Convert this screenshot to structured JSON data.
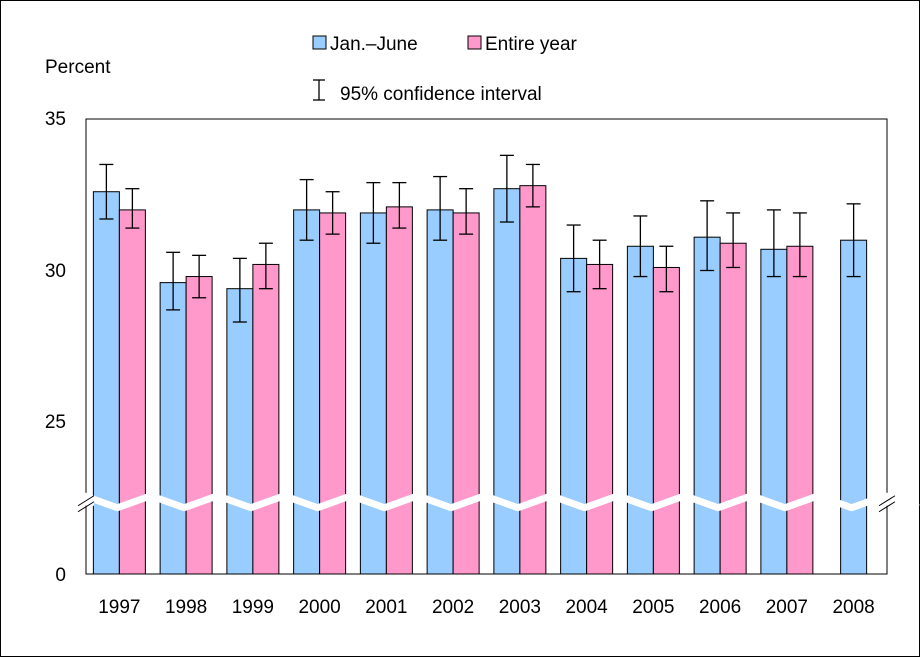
{
  "chart_data": {
    "type": "bar",
    "ylabel": "Percent",
    "y_ticks": [
      "0",
      "25",
      "30",
      "35"
    ],
    "ylim_upper": [
      22.5,
      35
    ],
    "axis_break": true,
    "categories": [
      "1997",
      "1998",
      "1999",
      "2000",
      "2001",
      "2002",
      "2003",
      "2004",
      "2005",
      "2006",
      "2007",
      "2008"
    ],
    "series": [
      {
        "name": "Jan.–June",
        "color": "#99ccff",
        "values": [
          32.6,
          29.6,
          29.4,
          32.0,
          31.9,
          32.0,
          32.7,
          30.4,
          30.8,
          31.1,
          30.7,
          31.0
        ],
        "ci_low": [
          31.7,
          28.7,
          28.3,
          31.0,
          30.9,
          31.0,
          31.6,
          29.3,
          29.8,
          30.0,
          29.8,
          29.8
        ],
        "ci_high": [
          33.5,
          30.6,
          30.4,
          33.0,
          32.9,
          33.1,
          33.8,
          31.5,
          31.8,
          32.3,
          32.0,
          32.2
        ]
      },
      {
        "name": "Entire year",
        "color": "#ff99cc",
        "values": [
          32.0,
          29.8,
          30.2,
          31.9,
          32.1,
          31.9,
          32.8,
          30.2,
          30.1,
          30.9,
          30.8,
          null
        ],
        "ci_low": [
          31.4,
          29.1,
          29.4,
          31.2,
          31.4,
          31.2,
          32.1,
          29.4,
          29.3,
          30.1,
          29.8,
          null
        ],
        "ci_high": [
          32.7,
          30.5,
          30.9,
          32.6,
          32.9,
          32.7,
          33.5,
          31.0,
          30.8,
          31.9,
          31.9,
          null
        ]
      }
    ],
    "legend": {
      "series_labels": [
        "Jan.–June",
        "Entire year"
      ],
      "ci_label": "95% confidence interval",
      "placement": "top-center"
    }
  }
}
